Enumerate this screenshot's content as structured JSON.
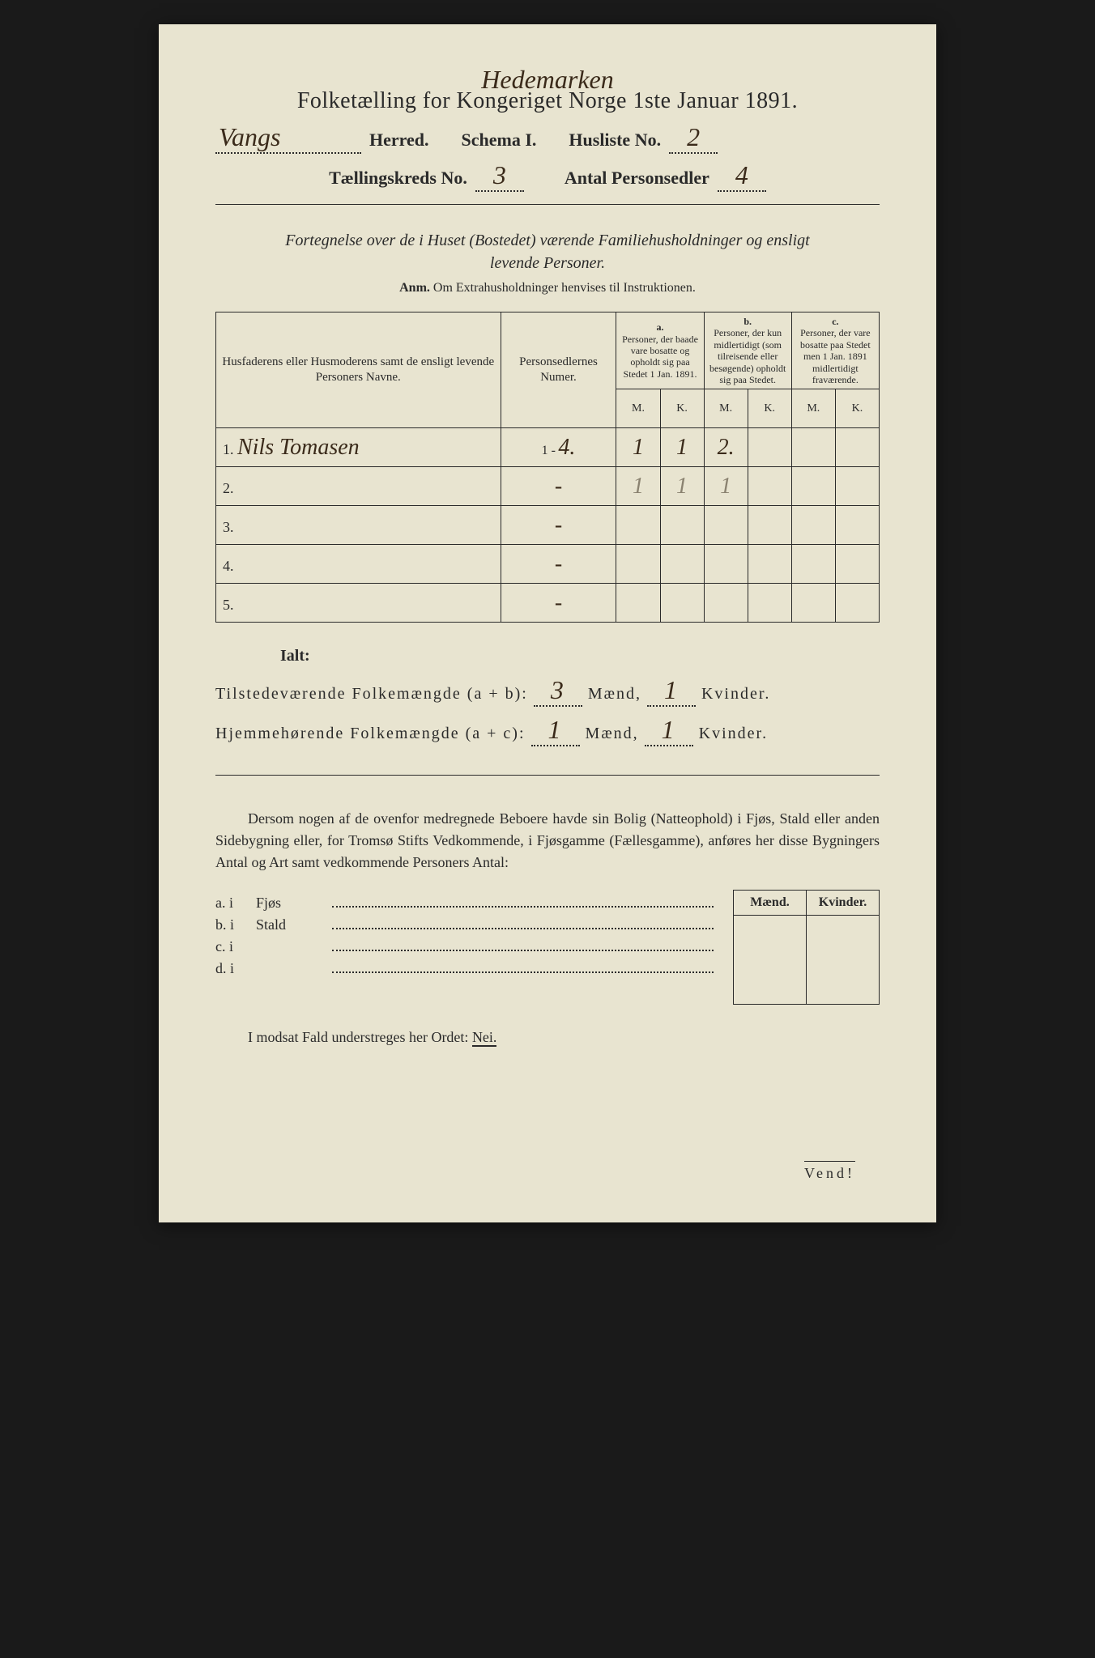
{
  "page": {
    "background_color": "#1a1a1a",
    "paper_color": "#e8e4d0",
    "text_color": "#2a2a2a",
    "handwriting_color": "#3a2a1a"
  },
  "header": {
    "county_handwritten": "Hedemarken",
    "main_title": "Folketælling for Kongeriget Norge 1ste Januar 1891.",
    "herred_handwritten": "Vangs",
    "herred_label": "Herred.",
    "schema_label": "Schema I.",
    "husliste_label": "Husliste No.",
    "husliste_value": "2",
    "kreds_label": "Tællingskreds No.",
    "kreds_value": "3",
    "personsedler_label": "Antal Personsedler",
    "personsedler_value": "4"
  },
  "subtitle": {
    "line1": "Fortegnelse over de i Huset (Bostedet) værende Familiehusholdninger og ensligt",
    "line2": "levende Personer.",
    "anm_label": "Anm.",
    "anm_text": "Om Extrahusholdninger henvises til Instruktionen."
  },
  "table": {
    "col1_header": "Husfaderens eller Husmoderens samt de ensligt levende Personers Navne.",
    "col2_header": "Personsedlernes Numer.",
    "col_a_label": "a.",
    "col_a_text": "Personer, der baade vare bosatte og opholdt sig paa Stedet 1 Jan. 1891.",
    "col_b_label": "b.",
    "col_b_text": "Personer, der kun midlertidigt (som tilreisende eller besøgende) opholdt sig paa Stedet.",
    "col_c_label": "c.",
    "col_c_text": "Personer, der vare bosatte paa Stedet men 1 Jan. 1891 midlertidigt fraværende.",
    "m_label": "M.",
    "k_label": "K.",
    "rows": [
      {
        "num": "1.",
        "name": "Nils Tomasen",
        "numer_prefix": "1 -",
        "numer": "4.",
        "a_m": "1",
        "a_k": "1",
        "b_m": "2.",
        "b_k": "",
        "c_m": "",
        "c_k": ""
      },
      {
        "num": "2.",
        "name": "",
        "numer_prefix": "",
        "numer": "-",
        "a_m": "1",
        "a_k": "1",
        "b_m": "1",
        "b_k": "",
        "c_m": "",
        "c_k": "",
        "faded": true
      },
      {
        "num": "3.",
        "name": "",
        "numer_prefix": "",
        "numer": "-",
        "a_m": "",
        "a_k": "",
        "b_m": "",
        "b_k": "",
        "c_m": "",
        "c_k": ""
      },
      {
        "num": "4.",
        "name": "",
        "numer_prefix": "",
        "numer": "-",
        "a_m": "",
        "a_k": "",
        "b_m": "",
        "b_k": "",
        "c_m": "",
        "c_k": ""
      },
      {
        "num": "5.",
        "name": "",
        "numer_prefix": "",
        "numer": "-",
        "a_m": "",
        "a_k": "",
        "b_m": "",
        "b_k": "",
        "c_m": "",
        "c_k": ""
      }
    ]
  },
  "totals": {
    "ialt": "Ialt:",
    "line_ab_label": "Tilstedeværende Folkemængde (a + b):",
    "line_ab_m": "3",
    "line_ab_k": "1",
    "line_ac_label": "Hjemmehørende Folkemængde (a + c):",
    "line_ac_m": "1",
    "line_ac_k": "1",
    "maend": "Mænd,",
    "kvinder": "Kvinder."
  },
  "paragraph": {
    "text": "Dersom nogen af de ovenfor medregnede Beboere havde sin Bolig (Natteophold) i Fjøs, Stald eller anden Sidebygning eller, for Tromsø Stifts Vedkommende, i Fjøsgamme (Fællesgamme), anføres her disse Bygningers Antal og Art samt vedkommende Personers Antal:"
  },
  "buildings": {
    "maend": "Mænd.",
    "kvinder": "Kvinder.",
    "rows": [
      {
        "label": "a.  i",
        "name": "Fjøs"
      },
      {
        "label": "b.  i",
        "name": "Stald"
      },
      {
        "label": "c.  i",
        "name": ""
      },
      {
        "label": "d.  i",
        "name": ""
      }
    ]
  },
  "footer": {
    "nei_line": "I modsat Fald understreges her Ordet:",
    "nei": "Nei.",
    "vend": "Vend!"
  }
}
